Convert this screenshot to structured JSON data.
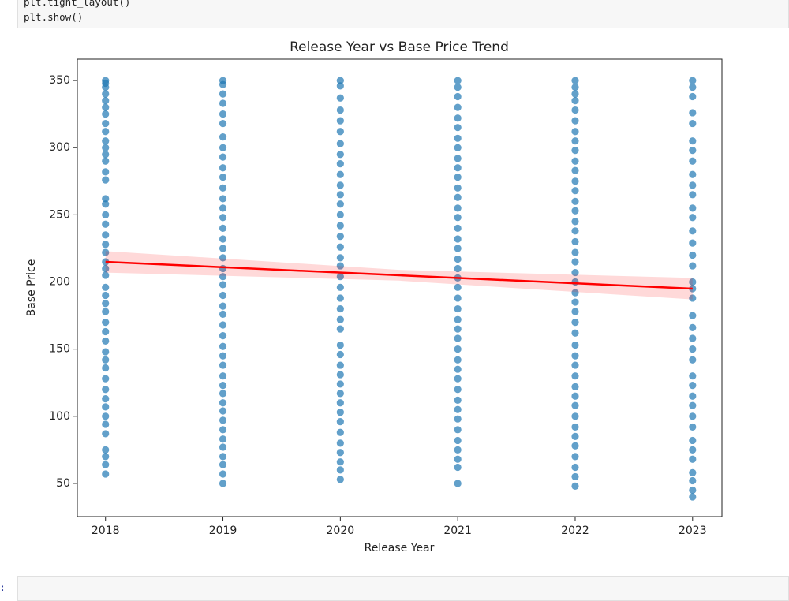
{
  "notebook": {
    "code_lines": [
      "plt.tight_layout()",
      "plt.show()"
    ],
    "next_prompt": "]:"
  },
  "chart_data": {
    "type": "scatter",
    "title": "Release Year vs Base Price Trend",
    "x_label": "Release Year",
    "y_label": "Base Price",
    "color": "#1f77b4",
    "xlim": [
      2017.76,
      2023.25
    ],
    "xticks": [
      2018,
      2019,
      2020,
      2021,
      2022,
      2023
    ],
    "ylim": [
      25.3,
      365.9
    ],
    "yticks": [
      50,
      100,
      150,
      200,
      250,
      300,
      350
    ],
    "groups": [
      {
        "x": 2018,
        "values": [
          350,
          348,
          345,
          340,
          335,
          330,
          325,
          318,
          312,
          305,
          300,
          295,
          290,
          282,
          276,
          262,
          258,
          250,
          243,
          235,
          228,
          222,
          215,
          210,
          205,
          196,
          190,
          184,
          178,
          170,
          163,
          156,
          148,
          142,
          136,
          128,
          120,
          113,
          107,
          100,
          94,
          87,
          75,
          70,
          64,
          57
        ]
      },
      {
        "x": 2019,
        "values": [
          350,
          347,
          340,
          333,
          325,
          318,
          308,
          300,
          293,
          285,
          278,
          270,
          262,
          255,
          248,
          240,
          232,
          225,
          218,
          210,
          204,
          198,
          190,
          182,
          176,
          168,
          160,
          152,
          145,
          138,
          130,
          123,
          117,
          110,
          104,
          97,
          90,
          83,
          77,
          70,
          64,
          57,
          50
        ]
      },
      {
        "x": 2020,
        "values": [
          350,
          346,
          337,
          328,
          320,
          312,
          303,
          295,
          288,
          280,
          272,
          265,
          258,
          250,
          242,
          234,
          226,
          218,
          212,
          204,
          196,
          188,
          180,
          172,
          165,
          153,
          146,
          138,
          131,
          124,
          117,
          110,
          103,
          96,
          88,
          80,
          73,
          66,
          60,
          53
        ]
      },
      {
        "x": 2021,
        "values": [
          350,
          345,
          338,
          330,
          322,
          315,
          307,
          300,
          292,
          285,
          278,
          270,
          263,
          255,
          248,
          240,
          232,
          225,
          217,
          210,
          203,
          196,
          188,
          180,
          172,
          165,
          158,
          150,
          142,
          135,
          128,
          120,
          112,
          105,
          98,
          90,
          82,
          75,
          68,
          62,
          50
        ]
      },
      {
        "x": 2022,
        "values": [
          350,
          345,
          340,
          335,
          328,
          320,
          312,
          305,
          298,
          290,
          283,
          275,
          268,
          260,
          253,
          245,
          238,
          230,
          222,
          215,
          207,
          200,
          192,
          185,
          178,
          170,
          162,
          153,
          145,
          138,
          130,
          122,
          115,
          108,
          100,
          92,
          85,
          78,
          70,
          62,
          55,
          48
        ]
      },
      {
        "x": 2023,
        "values": [
          350,
          345,
          338,
          326,
          318,
          305,
          298,
          290,
          280,
          272,
          265,
          255,
          248,
          238,
          229,
          220,
          212,
          200,
          195,
          188,
          175,
          166,
          158,
          150,
          142,
          130,
          123,
          115,
          108,
          100,
          92,
          82,
          75,
          68,
          58,
          52,
          45,
          40
        ]
      }
    ],
    "trend": {
      "color": "#ff0000",
      "x": [
        2018,
        2023
      ],
      "values": [
        215,
        195
      ]
    },
    "band": {
      "color": "#ff0000",
      "x": [
        2018,
        2020.5,
        2023
      ],
      "lower": [
        207,
        201,
        187
      ],
      "upper": [
        223,
        209,
        203
      ]
    }
  }
}
